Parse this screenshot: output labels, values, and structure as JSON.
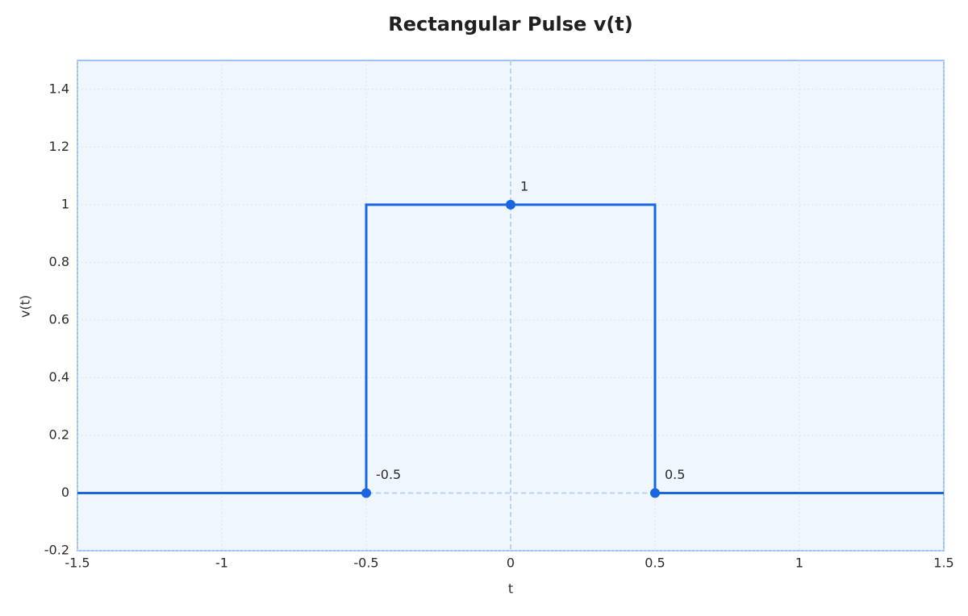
{
  "chart_data": {
    "type": "line",
    "title": "Rectangular Pulse v(t)",
    "x_label": "t",
    "y_label": "v(t)",
    "x": [
      -1.5,
      -0.5,
      -0.5,
      0.5,
      0.5,
      1.5
    ],
    "series": [
      {
        "name": "v(t)",
        "color": "#1a66e0",
        "values": [
          0,
          0,
          1,
          1,
          0,
          0
        ]
      }
    ],
    "annotations": [
      {
        "x": -0.5,
        "y": 0,
        "text": "-0.5"
      },
      {
        "x": 0,
        "y": 1,
        "text": "1"
      },
      {
        "x": 0.5,
        "y": 0,
        "text": "0.5"
      }
    ],
    "xlim": [
      -1.5,
      1.5
    ],
    "xticks": [
      -1.5,
      -1,
      -0.5,
      0,
      0.5,
      1,
      1.5
    ],
    "ylim": [
      -0.2,
      1.5
    ],
    "yticks": [
      -0.2,
      0,
      0.2,
      0.4,
      0.6,
      0.8,
      1,
      1.2,
      1.4
    ],
    "grid": true
  }
}
